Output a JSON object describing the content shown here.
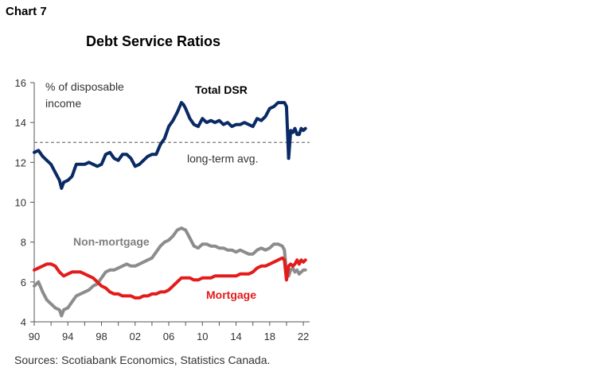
{
  "header": {
    "chart_label": "Chart 7",
    "source": "Sources: Scotiabank Economics, Statistics Canada."
  },
  "chart_data": {
    "type": "line",
    "title": "Debt Service Ratios",
    "ylabel": "% of disposable income",
    "ylabel_lines": [
      "% of disposable",
      "income"
    ],
    "xlabel": "",
    "xlim": [
      1990,
      2022.75
    ],
    "ylim": [
      4,
      16
    ],
    "x_ticks": [
      1990,
      1994,
      1998,
      2002,
      2006,
      2010,
      2014,
      2018,
      2022
    ],
    "x_tick_labels": [
      "90",
      "94",
      "98",
      "02",
      "06",
      "10",
      "14",
      "18",
      "22"
    ],
    "y_ticks": [
      4,
      6,
      8,
      10,
      12,
      14,
      16
    ],
    "y_tick_labels": [
      "4",
      "6",
      "8",
      "10",
      "12",
      "14",
      "16"
    ],
    "grid": false,
    "reference_line": {
      "y": 13.0,
      "label": "long-term avg.",
      "color": "#777777"
    },
    "series": [
      {
        "name": "Total DSR",
        "color": "#0a2a66",
        "x": [
          1990.0,
          1990.5,
          1991.0,
          1991.5,
          1992.0,
          1992.5,
          1993.0,
          1993.25,
          1993.5,
          1994.0,
          1994.5,
          1995.0,
          1995.5,
          1996.0,
          1996.5,
          1997.0,
          1997.5,
          1998.0,
          1998.5,
          1999.0,
          1999.5,
          2000.0,
          2000.5,
          2001.0,
          2001.5,
          2002.0,
          2002.5,
          2003.0,
          2003.5,
          2004.0,
          2004.5,
          2005.0,
          2005.5,
          2006.0,
          2006.5,
          2007.0,
          2007.5,
          2007.75,
          2008.0,
          2008.5,
          2009.0,
          2009.5,
          2010.0,
          2010.5,
          2011.0,
          2011.5,
          2012.0,
          2012.5,
          2013.0,
          2013.5,
          2014.0,
          2014.5,
          2015.0,
          2015.5,
          2016.0,
          2016.5,
          2017.0,
          2017.5,
          2018.0,
          2018.5,
          2019.0,
          2019.5,
          2019.75,
          2020.0,
          2020.25,
          2020.5,
          2020.75,
          2021.0,
          2021.25,
          2021.5,
          2021.75,
          2022.0,
          2022.25
        ],
        "values": [
          12.5,
          12.6,
          12.3,
          12.1,
          11.9,
          11.5,
          11.1,
          10.7,
          11.0,
          11.1,
          11.3,
          11.9,
          11.9,
          11.9,
          12.0,
          11.9,
          11.8,
          11.9,
          12.4,
          12.5,
          12.2,
          12.1,
          12.4,
          12.4,
          12.2,
          11.8,
          11.9,
          12.1,
          12.3,
          12.4,
          12.4,
          12.9,
          13.2,
          13.8,
          14.1,
          14.5,
          15.0,
          14.9,
          14.7,
          14.2,
          13.9,
          13.8,
          14.2,
          14.0,
          14.1,
          14.0,
          14.1,
          13.9,
          14.0,
          13.8,
          13.9,
          13.9,
          14.0,
          13.9,
          13.8,
          14.2,
          14.1,
          14.3,
          14.7,
          14.8,
          15.0,
          15.0,
          15.0,
          14.8,
          12.2,
          13.6,
          13.5,
          13.7,
          13.4,
          13.4,
          13.7,
          13.6,
          13.7
        ]
      },
      {
        "name": "Non-mortgage",
        "color": "#8c8c8c",
        "x": [
          1990.0,
          1990.5,
          1991.0,
          1991.5,
          1992.0,
          1992.5,
          1993.0,
          1993.25,
          1993.5,
          1994.0,
          1994.5,
          1995.0,
          1995.5,
          1996.0,
          1996.5,
          1997.0,
          1997.5,
          1998.0,
          1998.5,
          1999.0,
          1999.5,
          2000.0,
          2000.5,
          2001.0,
          2001.5,
          2002.0,
          2002.5,
          2003.0,
          2003.5,
          2004.0,
          2004.5,
          2005.0,
          2005.5,
          2006.0,
          2006.5,
          2007.0,
          2007.5,
          2008.0,
          2008.5,
          2009.0,
          2009.5,
          2010.0,
          2010.5,
          2011.0,
          2011.5,
          2012.0,
          2012.5,
          2013.0,
          2013.5,
          2014.0,
          2014.5,
          2015.0,
          2015.5,
          2016.0,
          2016.5,
          2017.0,
          2017.5,
          2018.0,
          2018.5,
          2019.0,
          2019.5,
          2019.75,
          2020.0,
          2020.25,
          2020.5,
          2020.75,
          2021.0,
          2021.25,
          2021.5,
          2021.75,
          2022.0,
          2022.25
        ],
        "values": [
          5.8,
          6.0,
          5.5,
          5.1,
          4.9,
          4.7,
          4.6,
          4.3,
          4.6,
          4.7,
          5.0,
          5.3,
          5.4,
          5.5,
          5.6,
          5.8,
          5.9,
          6.2,
          6.5,
          6.6,
          6.6,
          6.7,
          6.8,
          6.9,
          6.8,
          6.8,
          6.9,
          7.0,
          7.1,
          7.2,
          7.5,
          7.8,
          8.0,
          8.1,
          8.3,
          8.6,
          8.7,
          8.6,
          8.2,
          7.8,
          7.7,
          7.9,
          7.9,
          7.8,
          7.8,
          7.7,
          7.7,
          7.6,
          7.6,
          7.5,
          7.6,
          7.5,
          7.4,
          7.4,
          7.6,
          7.7,
          7.6,
          7.7,
          7.9,
          7.9,
          7.8,
          7.6,
          6.5,
          6.3,
          6.6,
          6.7,
          6.5,
          6.6,
          6.4,
          6.5,
          6.6,
          6.6
        ]
      },
      {
        "name": "Mortgage",
        "color": "#e31b1b",
        "x": [
          1990.0,
          1990.5,
          1991.0,
          1991.5,
          1992.0,
          1992.5,
          1993.0,
          1993.5,
          1994.0,
          1994.5,
          1995.0,
          1995.5,
          1996.0,
          1996.5,
          1997.0,
          1997.5,
          1998.0,
          1998.5,
          1999.0,
          1999.5,
          2000.0,
          2000.5,
          2001.0,
          2001.5,
          2002.0,
          2002.5,
          2003.0,
          2003.5,
          2004.0,
          2004.5,
          2005.0,
          2005.5,
          2006.0,
          2006.5,
          2007.0,
          2007.5,
          2008.0,
          2008.5,
          2009.0,
          2009.5,
          2010.0,
          2010.5,
          2011.0,
          2011.5,
          2012.0,
          2012.5,
          2013.0,
          2013.5,
          2014.0,
          2014.5,
          2015.0,
          2015.5,
          2016.0,
          2016.5,
          2017.0,
          2017.5,
          2018.0,
          2018.5,
          2019.0,
          2019.5,
          2019.75,
          2020.0,
          2020.25,
          2020.5,
          2020.75,
          2021.0,
          2021.25,
          2021.5,
          2021.75,
          2022.0,
          2022.25
        ],
        "values": [
          6.6,
          6.7,
          6.8,
          6.9,
          6.9,
          6.8,
          6.5,
          6.3,
          6.4,
          6.5,
          6.5,
          6.5,
          6.4,
          6.3,
          6.2,
          6.0,
          5.8,
          5.7,
          5.5,
          5.4,
          5.4,
          5.3,
          5.3,
          5.3,
          5.2,
          5.2,
          5.3,
          5.3,
          5.4,
          5.4,
          5.5,
          5.5,
          5.6,
          5.8,
          6.0,
          6.2,
          6.2,
          6.2,
          6.1,
          6.1,
          6.2,
          6.2,
          6.2,
          6.3,
          6.3,
          6.3,
          6.3,
          6.3,
          6.3,
          6.4,
          6.4,
          6.4,
          6.5,
          6.7,
          6.8,
          6.8,
          6.9,
          7.0,
          7.1,
          7.2,
          7.1,
          6.1,
          6.8,
          6.9,
          6.8,
          6.9,
          7.1,
          6.9,
          7.1,
          7.0,
          7.1
        ]
      }
    ],
    "annotations": [
      {
        "text": "Total DSR",
        "series": "Total DSR"
      },
      {
        "text": "Non-mortgage",
        "series": "Non-mortgage"
      },
      {
        "text": "Mortgage",
        "series": "Mortgage"
      }
    ]
  }
}
